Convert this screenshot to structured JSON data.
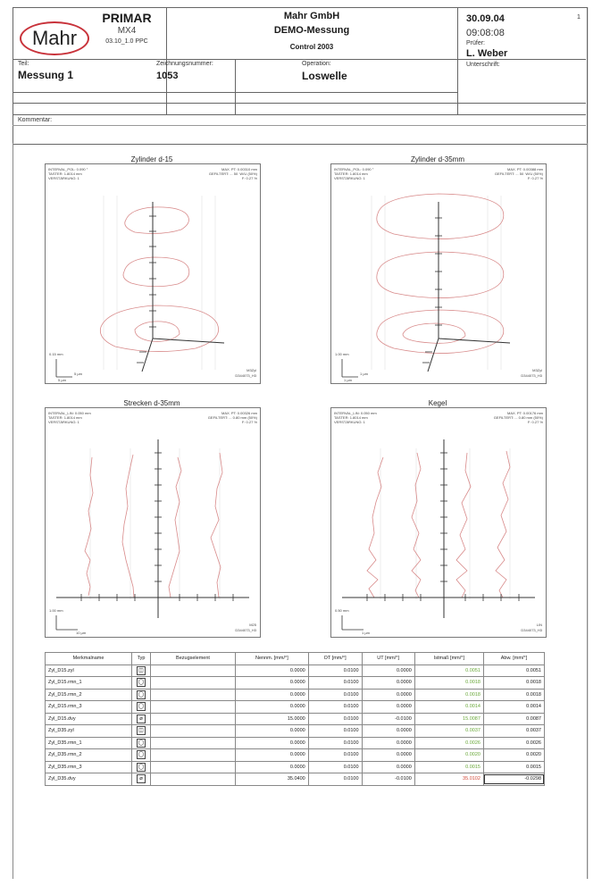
{
  "header": {
    "logo_text": "Mahr",
    "product": "PRIMAR",
    "model": "MX4",
    "version": "03.10_1.0 PPC",
    "company": "Mahr GmbH",
    "demo": "DEMO-Messung",
    "control": "Control 2003",
    "date": "30.09.04",
    "time": "09:08:08",
    "page": "1",
    "pruefer_label": "Prüfer:",
    "pruefer": "L. Weber",
    "unterschrift_label": "Unterschrift:",
    "teil_label": "Teil:",
    "teil": "Messung 1",
    "zeichnung_label": "Zeichnungsnummer:",
    "zeichnung": "1053",
    "operation_label": "Operation:",
    "operation": "Loswelle",
    "kommentar_label": "Kommentar:"
  },
  "panels": [
    {
      "title": "Zylinder d-15",
      "meta_left": "INTERVAL_POL: 0.090 °\nTASTER: 1.8014 mm\nVERSTÄRKUNG: 1",
      "meta_right": "MAX. PT: 0.00310 mm\nGEFILTERT: ... 50  W/U (50%)\nF: 0.27 %",
      "scale1": "0.15 mm",
      "scale2": "5 µm",
      "scale3": "5 µm",
      "code1": "M3Zyl",
      "code2": "D344073_H3"
    },
    {
      "title": "Zylinder d-35mm",
      "meta_left": "INTERVAL_POL: 0.090 °\nTASTER: 1.8014 mm\nVERSTÄRKUNG: 1",
      "meta_right": "MAX. PT: 0.00388 mm\nGEFILTERT: ... 50  W/U (50%)\nF: 0.27 %",
      "scale1": "1.00 mm",
      "scale2": "1 µm",
      "scale3": "1 µm",
      "code1": "M3Zyl",
      "code2": "D344073_H3"
    },
    {
      "title": "Strecken d-35mm",
      "meta_left": "INTERVAL_LIN: 0.050 mm\nTASTER: 1.8014 mm\nVERSTÄRKUNG: 1",
      "meta_right": "MAX. PT: 0.00326 mm\nGEFILTERT: ... 0.80 mm (50%)\nF: 0.27 %",
      "scale1": "1.00 mm",
      "scale2": "10 µm",
      "scale3": "",
      "code1": "M25",
      "code2": "D344073_H3"
    },
    {
      "title": "Kegel",
      "meta_left": "INTERVAL_LIN: 0.050 mm\nTASTER: 1.8014 mm\nVERSTÄRKUNG: 1",
      "meta_right": "MAX. PT: 0.00176 mm\nGEFILTERT: ... 0.80 mm (50%)\nF: 0.27 %",
      "scale1": "0.50 mm",
      "scale2": "1 µm",
      "scale3": "",
      "code1": "LIN",
      "code2": "D344073_H3"
    }
  ],
  "table": {
    "headers": [
      "Merkmalname",
      "Typ",
      "Bezugselement",
      "Nennm. [mm/°]",
      "OT [mm/°]",
      "UT [mm/°]",
      "Istmaß [mm/°]",
      "Abw. [mm/°]"
    ],
    "rows": [
      {
        "name": "Zyl_D15.zyl",
        "typ": "◫",
        "bezug": "",
        "nenn": "0.0000",
        "ot": "0.0100",
        "ut": "0.0000",
        "ist": "0.0051",
        "abw": "0.0051",
        "status": "ok"
      },
      {
        "name": "Zyl_D15.rmn_1",
        "typ": "◯",
        "bezug": "",
        "nenn": "0.0000",
        "ot": "0.0100",
        "ut": "0.0000",
        "ist": "0.0018",
        "abw": "0.0018",
        "status": "ok"
      },
      {
        "name": "Zyl_D15.rmn_2",
        "typ": "◯",
        "bezug": "",
        "nenn": "0.0000",
        "ot": "0.0100",
        "ut": "0.0000",
        "ist": "0.0018",
        "abw": "0.0018",
        "status": "ok"
      },
      {
        "name": "Zyl_D15.rmn_3",
        "typ": "◯",
        "bezug": "",
        "nenn": "0.0000",
        "ot": "0.0100",
        "ut": "0.0000",
        "ist": "0.0014",
        "abw": "0.0014",
        "status": "ok"
      },
      {
        "name": "Zyl_D15.dvy",
        "typ": "⌀",
        "bezug": "",
        "nenn": "15.0000",
        "ot": "0.0100",
        "ut": "-0.0100",
        "ist": "15.0087",
        "abw": "0.0087",
        "status": "ok"
      },
      {
        "name": "Zyl_D35.zyl",
        "typ": "◫",
        "bezug": "",
        "nenn": "0.0000",
        "ot": "0.0100",
        "ut": "0.0000",
        "ist": "0.0037",
        "abw": "0.0037",
        "status": "ok"
      },
      {
        "name": "Zyl_D35.rmn_1",
        "typ": "◯",
        "bezug": "",
        "nenn": "0.0000",
        "ot": "0.0100",
        "ut": "0.0000",
        "ist": "0.0026",
        "abw": "0.0026",
        "status": "ok"
      },
      {
        "name": "Zyl_D35.rmn_2",
        "typ": "◯",
        "bezug": "",
        "nenn": "0.0000",
        "ot": "0.0100",
        "ut": "0.0000",
        "ist": "0.0020",
        "abw": "0.0020",
        "status": "ok"
      },
      {
        "name": "Zyl_D35.rmn_3",
        "typ": "◯",
        "bezug": "",
        "nenn": "0.0000",
        "ot": "0.0100",
        "ut": "0.0000",
        "ist": "0.0015",
        "abw": "0.0015",
        "status": "ok"
      },
      {
        "name": "Zyl_D35.dvy",
        "typ": "⌀",
        "bezug": "",
        "nenn": "35.0400",
        "ot": "0.0100",
        "ut": "-0.0100",
        "ist": "35.0102",
        "abw": "-0.0298",
        "status": "fail"
      }
    ]
  },
  "colors": {
    "trace": "#d88a8a",
    "ok": "#6aa83a",
    "fail": "#d24a3a",
    "grid": "#cccccc"
  }
}
